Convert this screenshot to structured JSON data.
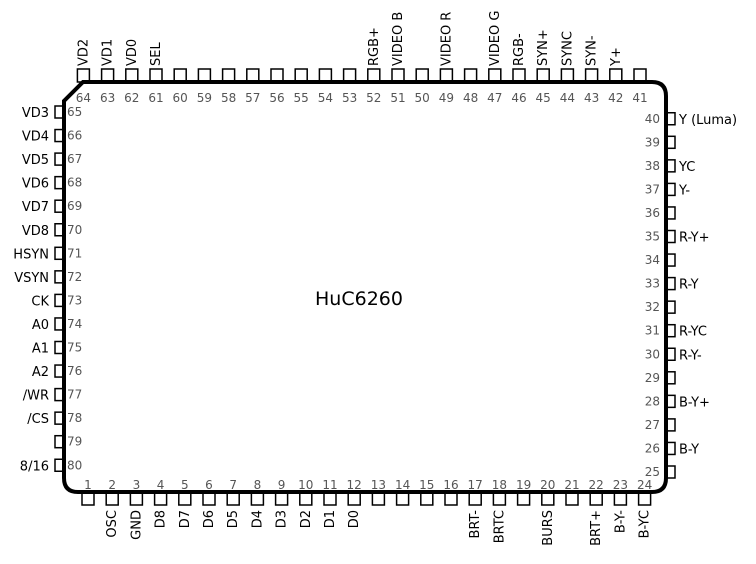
{
  "chip": {
    "name": "HuC6260",
    "pins": {
      "bottom": [
        {
          "n": "1",
          "s": ""
        },
        {
          "n": "2",
          "s": "OSC"
        },
        {
          "n": "3",
          "s": "GND"
        },
        {
          "n": "4",
          "s": "D8"
        },
        {
          "n": "5",
          "s": "D7"
        },
        {
          "n": "6",
          "s": "D6"
        },
        {
          "n": "7",
          "s": "D5"
        },
        {
          "n": "8",
          "s": "D4"
        },
        {
          "n": "9",
          "s": "D3"
        },
        {
          "n": "10",
          "s": "D2"
        },
        {
          "n": "11",
          "s": "D1"
        },
        {
          "n": "12",
          "s": "D0"
        },
        {
          "n": "13",
          "s": ""
        },
        {
          "n": "14",
          "s": ""
        },
        {
          "n": "15",
          "s": ""
        },
        {
          "n": "16",
          "s": ""
        },
        {
          "n": "17",
          "s": "BRT-"
        },
        {
          "n": "18",
          "s": "BRTC"
        },
        {
          "n": "19",
          "s": ""
        },
        {
          "n": "20",
          "s": "BURS"
        },
        {
          "n": "21",
          "s": ""
        },
        {
          "n": "22",
          "s": "BRT+"
        },
        {
          "n": "23",
          "s": "B-Y-"
        },
        {
          "n": "24",
          "s": "B-YC"
        }
      ],
      "right": [
        {
          "n": "25",
          "s": ""
        },
        {
          "n": "26",
          "s": "B-Y"
        },
        {
          "n": "27",
          "s": ""
        },
        {
          "n": "28",
          "s": "B-Y+"
        },
        {
          "n": "29",
          "s": ""
        },
        {
          "n": "30",
          "s": "R-Y-"
        },
        {
          "n": "31",
          "s": "R-YC"
        },
        {
          "n": "32",
          "s": ""
        },
        {
          "n": "33",
          "s": "R-Y"
        },
        {
          "n": "34",
          "s": ""
        },
        {
          "n": "35",
          "s": "R-Y+"
        },
        {
          "n": "36",
          "s": ""
        },
        {
          "n": "37",
          "s": "Y-"
        },
        {
          "n": "38",
          "s": "YC"
        },
        {
          "n": "39",
          "s": ""
        },
        {
          "n": "40",
          "s": "Y (Luma)"
        }
      ],
      "top": [
        {
          "n": "41",
          "s": ""
        },
        {
          "n": "42",
          "s": "Y+"
        },
        {
          "n": "43",
          "s": "SYN-"
        },
        {
          "n": "44",
          "s": "SYNC"
        },
        {
          "n": "45",
          "s": "SYN+"
        },
        {
          "n": "46",
          "s": "RGB-"
        },
        {
          "n": "47",
          "s": "VIDEO G"
        },
        {
          "n": "48",
          "s": ""
        },
        {
          "n": "49",
          "s": "VIDEO R"
        },
        {
          "n": "50",
          "s": ""
        },
        {
          "n": "51",
          "s": "VIDEO B"
        },
        {
          "n": "52",
          "s": "RGB+"
        },
        {
          "n": "53",
          "s": ""
        },
        {
          "n": "54",
          "s": ""
        },
        {
          "n": "55",
          "s": ""
        },
        {
          "n": "56",
          "s": ""
        },
        {
          "n": "57",
          "s": ""
        },
        {
          "n": "58",
          "s": ""
        },
        {
          "n": "59",
          "s": ""
        },
        {
          "n": "60",
          "s": ""
        },
        {
          "n": "61",
          "s": "SEL"
        },
        {
          "n": "62",
          "s": "VD0"
        },
        {
          "n": "63",
          "s": "VD1"
        },
        {
          "n": "64",
          "s": "VD2"
        }
      ],
      "left": [
        {
          "n": "65",
          "s": "VD3"
        },
        {
          "n": "66",
          "s": "VD4"
        },
        {
          "n": "67",
          "s": "VD5"
        },
        {
          "n": "68",
          "s": "VD6"
        },
        {
          "n": "69",
          "s": "VD7"
        },
        {
          "n": "70",
          "s": "VD8"
        },
        {
          "n": "71",
          "s": "HSYN"
        },
        {
          "n": "72",
          "s": "VSYN"
        },
        {
          "n": "73",
          "s": "CK"
        },
        {
          "n": "74",
          "s": "A0"
        },
        {
          "n": "75",
          "s": "A1"
        },
        {
          "n": "76",
          "s": "A2"
        },
        {
          "n": "77",
          "s": "/WR"
        },
        {
          "n": "78",
          "s": "/CS"
        },
        {
          "n": "79",
          "s": ""
        },
        {
          "n": "80",
          "s": "8/16"
        }
      ]
    }
  }
}
